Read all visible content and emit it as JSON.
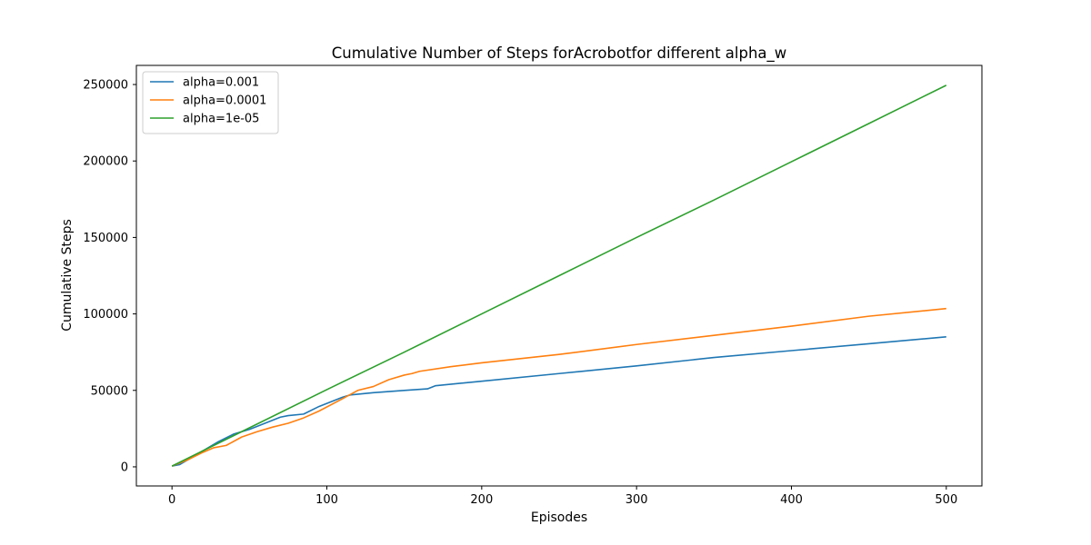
{
  "chart_data": {
    "type": "line",
    "title": "Cumulative Number of Steps forAcrobotfor different alpha_w",
    "xlabel": "Episodes",
    "ylabel": "Cumulative Steps",
    "xlim": [
      -23,
      523
    ],
    "ylim": [
      -12500,
      262500
    ],
    "xticks": [
      0,
      100,
      200,
      300,
      400,
      500
    ],
    "yticks": [
      0,
      50000,
      100000,
      150000,
      200000,
      250000
    ],
    "grid": false,
    "legend_position": "upper-left",
    "series": [
      {
        "name": "alpha=0.001",
        "color": "#1f77b4",
        "x": [
          0,
          5,
          10,
          20,
          30,
          40,
          50,
          60,
          70,
          75,
          85,
          95,
          110,
          115,
          130,
          150,
          165,
          170,
          200,
          250,
          300,
          350,
          400,
          450,
          500
        ],
        "y": [
          500,
          1500,
          4500,
          10500,
          16500,
          21500,
          24500,
          28500,
          32500,
          33500,
          34500,
          39500,
          45500,
          47000,
          48500,
          50000,
          51000,
          53000,
          56000,
          61000,
          66000,
          71500,
          76000,
          80500,
          85000
        ]
      },
      {
        "name": "alpha=0.0001",
        "color": "#ff7f0e",
        "x": [
          0,
          10,
          20,
          27,
          35,
          45,
          55,
          65,
          75,
          85,
          95,
          110,
          120,
          130,
          140,
          150,
          155,
          160,
          180,
          200,
          250,
          300,
          350,
          400,
          450,
          500
        ],
        "y": [
          500,
          4500,
          9500,
          12500,
          14000,
          19500,
          23000,
          26000,
          28500,
          32000,
          36500,
          44500,
          50000,
          52500,
          57000,
          60000,
          61000,
          62500,
          65500,
          68000,
          73500,
          80000,
          86000,
          92000,
          98500,
          103500
        ]
      },
      {
        "name": "alpha=1e-05",
        "color": "#2ca02c",
        "x": [
          0,
          50,
          100,
          150,
          200,
          250,
          300,
          350,
          400,
          450,
          500
        ],
        "y": [
          500,
          25500,
          50500,
          75000,
          100000,
          125000,
          150000,
          174500,
          199500,
          224500,
          249500
        ]
      }
    ]
  }
}
